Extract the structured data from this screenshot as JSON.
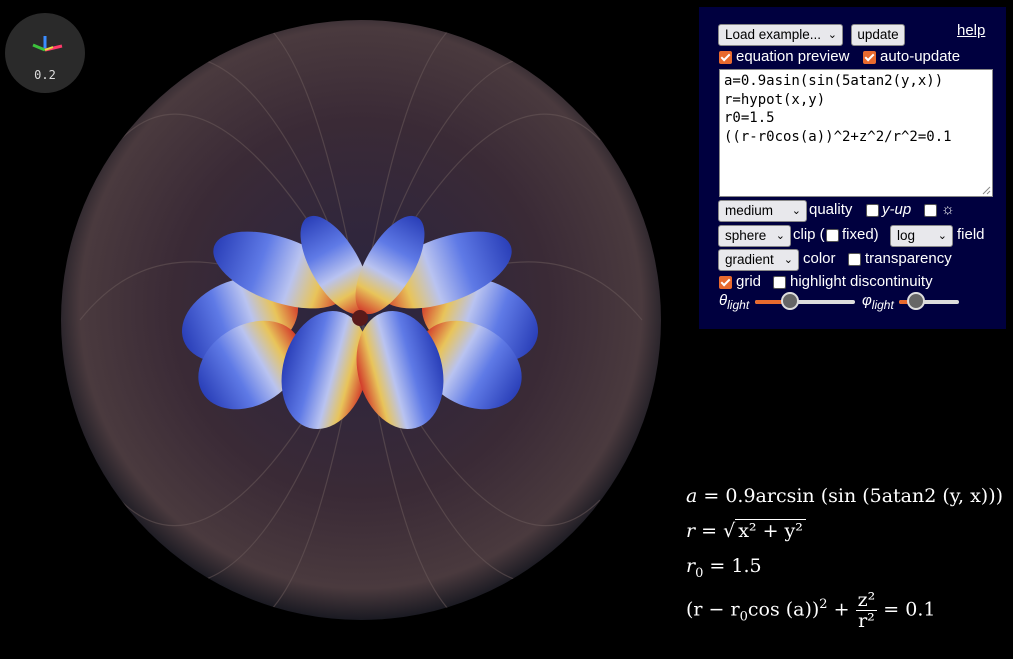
{
  "axes_widget": {
    "value": "0.2"
  },
  "panel": {
    "example_select": "Load example...",
    "update_button": "update",
    "help_link": "help",
    "equation_preview": {
      "label": "equation preview",
      "checked": true
    },
    "auto_update": {
      "label": "auto-update",
      "checked": true
    },
    "equation_text": "a=0.9asin(sin(5atan2(y,x))\nr=hypot(x,y)\nr0=1.5\n((r-r0cos(a))^2+z^2/r^2=0.1",
    "quality_select": "medium",
    "quality_label": "quality",
    "y_up": {
      "label": "y-up",
      "checked": false
    },
    "sun": {
      "label": "☼",
      "checked": false
    },
    "clip_select": "sphere",
    "clip_label_open": "clip (",
    "fixed_label": "fixed)",
    "fixed_checked": false,
    "field_select": "log",
    "field_label": "field",
    "color_select": "gradient",
    "color_label": "color",
    "transparency": {
      "label": "transparency",
      "checked": false
    },
    "grid": {
      "label": "grid",
      "checked": true
    },
    "highlight_discontinuity": {
      "label": "highlight discontinuity",
      "checked": false
    },
    "theta_light": {
      "symbol": "θ",
      "sub": "light",
      "value": 0.35
    },
    "phi_light": {
      "symbol": "φ",
      "sub": "light",
      "value": 0.28
    }
  },
  "math": {
    "line1": {
      "lhs": "a",
      "rhs": "0.9arcsin (sin (5atan2 (y, x)))"
    },
    "line2": {
      "lhs": "r",
      "radicand": "x² + y²"
    },
    "line3": {
      "lhs": "r",
      "sub": "0",
      "rhs": "1.5"
    },
    "line4": {
      "left": "(r − r",
      "sub": "0",
      "mid": "cos (a))",
      "sup": "2",
      "plus": "+",
      "num": "z²",
      "den": "r²",
      "rhs": "= 0.1"
    }
  },
  "colors": {
    "accent": "#e86a2e",
    "panel_bg": "#00003f",
    "petal_blue": "#3b5fd6"
  }
}
